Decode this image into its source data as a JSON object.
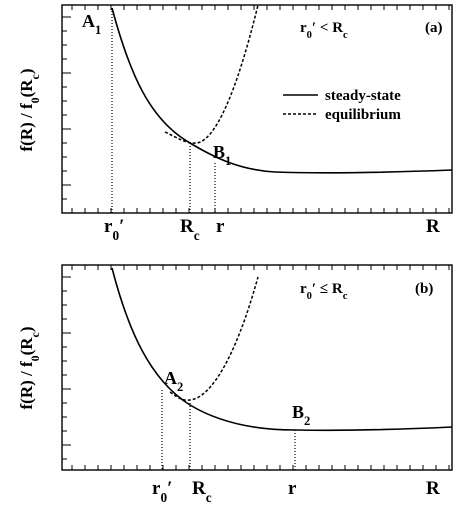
{
  "panels": [
    {
      "tag": "(a)",
      "condition": [
        {
          "t": "r"
        },
        {
          "sub": "0"
        },
        {
          "t": "′ < R"
        },
        {
          "sub": "c"
        }
      ],
      "ylabel": [
        {
          "t": "f(R) / f"
        },
        {
          "sub": "0"
        },
        {
          "t": "(R"
        },
        {
          "sub": "c"
        },
        {
          "t": ")"
        }
      ],
      "legend": [
        "steady-state",
        "equilibrium"
      ],
      "points": [
        [
          {
            "t": "A"
          },
          {
            "sub": "1"
          }
        ],
        [
          {
            "t": "B"
          },
          {
            "sub": "1"
          }
        ]
      ],
      "xlabels": [
        [
          {
            "t": "r"
          },
          {
            "sub": "0"
          },
          {
            "t": "′"
          }
        ],
        [
          {
            "t": "R"
          },
          {
            "sub": "c"
          }
        ],
        [
          {
            "t": "r"
          }
        ],
        [
          {
            "t": "R"
          }
        ]
      ]
    },
    {
      "tag": "(b)",
      "condition": [
        {
          "t": "r"
        },
        {
          "sub": "0"
        },
        {
          "t": "′ ≤ R"
        },
        {
          "sub": "c"
        }
      ],
      "ylabel": [
        {
          "t": "f(R) / f"
        },
        {
          "sub": "0"
        },
        {
          "t": "(R"
        },
        {
          "sub": "c"
        },
        {
          "t": ")"
        }
      ],
      "points": [
        [
          {
            "t": "A"
          },
          {
            "sub": "2"
          }
        ],
        [
          {
            "t": "B"
          },
          {
            "sub": "2"
          }
        ]
      ],
      "xlabels": [
        [
          {
            "t": "r"
          },
          {
            "sub": "0"
          },
          {
            "t": "′"
          }
        ],
        [
          {
            "t": "R"
          },
          {
            "sub": "c"
          }
        ],
        [
          {
            "t": "r"
          }
        ],
        [
          {
            "t": "R"
          }
        ]
      ]
    }
  ]
}
